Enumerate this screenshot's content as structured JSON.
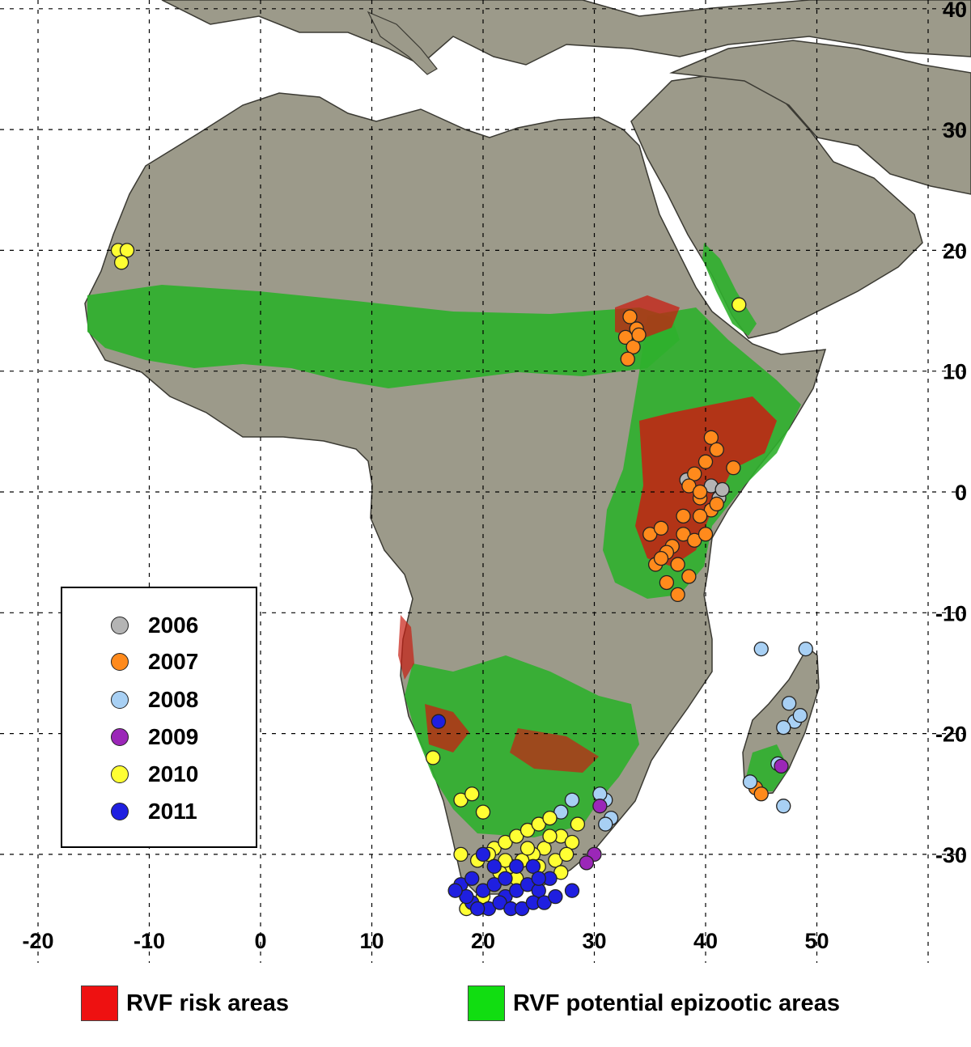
{
  "map": {
    "x_ticks": [
      "-20",
      "-10",
      "0",
      "10",
      "20",
      "30",
      "40",
      "50"
    ],
    "y_ticks": [
      "40",
      "30",
      "20",
      "10",
      "0",
      "-10",
      "-20",
      "-30"
    ]
  },
  "legend": {
    "years": [
      {
        "label": "2006",
        "color": "#b4b4b4"
      },
      {
        "label": "2007",
        "color": "#ff8a1c"
      },
      {
        "label": "2008",
        "color": "#a8d0f4"
      },
      {
        "label": "2009",
        "color": "#9b27b8"
      },
      {
        "label": "2010",
        "color": "#ffff33"
      },
      {
        "label": "2011",
        "color": "#1f1fe0"
      }
    ]
  },
  "area_key": {
    "risk": {
      "label": "RVF risk areas",
      "color": "#ee1111"
    },
    "epizootic": {
      "label": "RVF potential epizootic areas",
      "color": "#11dd11"
    }
  },
  "colors": {
    "land": "#9c9a8a",
    "sea": "#ffffff",
    "epizootic_zone": "#2fb02c",
    "risk_zone": "#c81e12"
  },
  "outbreaks": {
    "2006": [
      [
        40.5,
        0.5
      ],
      [
        41.2,
        -0.5
      ],
      [
        38.3,
        1.0
      ],
      [
        41.5,
        0.2
      ]
    ],
    "2007": [
      [
        33.2,
        14.5
      ],
      [
        33.8,
        13.5
      ],
      [
        32.8,
        12.8
      ],
      [
        33.5,
        12.0
      ],
      [
        33.0,
        11.0
      ],
      [
        34.0,
        13.0
      ],
      [
        40.5,
        4.5
      ],
      [
        42.5,
        2.0
      ],
      [
        41.0,
        3.5
      ],
      [
        39.0,
        1.5
      ],
      [
        40.0,
        2.5
      ],
      [
        38.5,
        0.5
      ],
      [
        39.5,
        -0.5
      ],
      [
        40.5,
        -1.5
      ],
      [
        39.5,
        -2.0
      ],
      [
        41.0,
        -1.0
      ],
      [
        38.0,
        -3.5
      ],
      [
        39.0,
        -4.0
      ],
      [
        37.0,
        -4.5
      ],
      [
        36.5,
        -5.0
      ],
      [
        35.5,
        -6.0
      ],
      [
        36.0,
        -5.5
      ],
      [
        37.5,
        -6.0
      ],
      [
        38.5,
        -7.0
      ],
      [
        36.5,
        -7.5
      ],
      [
        37.5,
        -8.5
      ],
      [
        35.0,
        -3.5
      ],
      [
        36.0,
        -3.0
      ],
      [
        38.0,
        -2.0
      ],
      [
        39.5,
        0.0
      ],
      [
        40.0,
        -3.5
      ],
      [
        44.5,
        -24.5
      ],
      [
        45.0,
        -25.0
      ]
    ],
    "2008": [
      [
        47.5,
        -17.5
      ],
      [
        48.0,
        -19.0
      ],
      [
        48.5,
        -18.5
      ],
      [
        47.0,
        -19.5
      ],
      [
        49.0,
        -13.0
      ],
      [
        45.0,
        -13.0
      ],
      [
        46.5,
        -22.5
      ],
      [
        44.0,
        -24.0
      ],
      [
        47.0,
        -26.0
      ],
      [
        31.0,
        -25.5
      ],
      [
        31.5,
        -27.0
      ],
      [
        30.5,
        -25.0
      ],
      [
        28.0,
        -25.5
      ],
      [
        31.0,
        -27.5
      ],
      [
        27.0,
        -26.5
      ]
    ],
    "2009": [
      [
        46.8,
        -22.7
      ],
      [
        30.5,
        -26.0
      ],
      [
        30.0,
        -30.0
      ],
      [
        29.3,
        -30.7
      ]
    ],
    "2010": [
      [
        -12.8,
        20.0
      ],
      [
        -12.0,
        20.0
      ],
      [
        -12.5,
        19.0
      ],
      [
        43.0,
        15.5
      ],
      [
        15.5,
        -22.0
      ],
      [
        18.0,
        -25.5
      ],
      [
        19.0,
        -25.0
      ],
      [
        20.0,
        -26.5
      ],
      [
        21.0,
        -29.5
      ],
      [
        22.0,
        -29.0
      ],
      [
        23.0,
        -28.5
      ],
      [
        24.0,
        -28.0
      ],
      [
        25.0,
        -27.5
      ],
      [
        26.0,
        -27.0
      ],
      [
        27.0,
        -28.5
      ],
      [
        28.0,
        -29.0
      ],
      [
        25.5,
        -29.5
      ],
      [
        24.5,
        -30.0
      ],
      [
        23.5,
        -30.5
      ],
      [
        22.5,
        -31.0
      ],
      [
        21.5,
        -31.5
      ],
      [
        20.5,
        -30.0
      ],
      [
        19.5,
        -30.5
      ],
      [
        18.0,
        -30.0
      ],
      [
        26.5,
        -30.5
      ],
      [
        27.5,
        -30.0
      ],
      [
        28.5,
        -27.5
      ],
      [
        26.0,
        -28.5
      ],
      [
        24.0,
        -29.5
      ],
      [
        22.0,
        -30.5
      ],
      [
        18.5,
        -34.5
      ],
      [
        20.0,
        -33.5
      ],
      [
        27.0,
        -31.5
      ],
      [
        25.0,
        -31.0
      ],
      [
        23.0,
        -32.0
      ]
    ],
    "2011": [
      [
        16.0,
        -19.0
      ],
      [
        18.0,
        -32.5
      ],
      [
        19.0,
        -32.0
      ],
      [
        20.0,
        -33.0
      ],
      [
        21.0,
        -32.5
      ],
      [
        22.0,
        -33.5
      ],
      [
        23.0,
        -33.0
      ],
      [
        24.0,
        -32.5
      ],
      [
        25.0,
        -33.0
      ],
      [
        26.0,
        -32.0
      ],
      [
        19.0,
        -34.0
      ],
      [
        20.5,
        -34.5
      ],
      [
        21.5,
        -34.0
      ],
      [
        22.5,
        -34.5
      ],
      [
        23.5,
        -34.5
      ],
      [
        24.5,
        -34.0
      ],
      [
        25.5,
        -34.0
      ],
      [
        26.5,
        -33.5
      ],
      [
        18.5,
        -33.5
      ],
      [
        21.0,
        -31.0
      ],
      [
        23.0,
        -31.0
      ],
      [
        24.5,
        -31.0
      ],
      [
        28.0,
        -33.0
      ],
      [
        20.0,
        -30.0
      ],
      [
        22.0,
        -32.0
      ],
      [
        25.0,
        -32.0
      ],
      [
        17.5,
        -33.0
      ],
      [
        19.5,
        -34.5
      ]
    ]
  }
}
